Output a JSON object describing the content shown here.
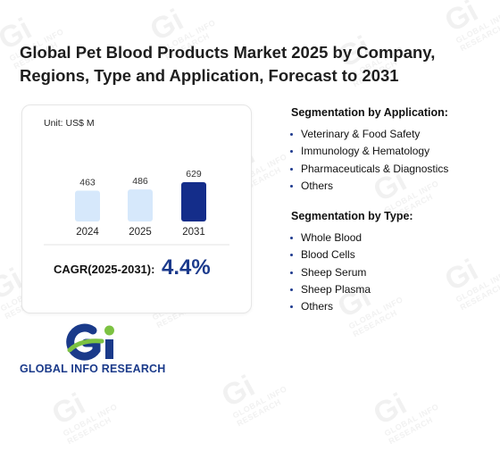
{
  "title": "Global Pet Blood Products Market 2025 by Company, Regions, Type and Application, Forecast to 2031",
  "chart_data": {
    "type": "bar",
    "unit": "Unit: US$ M",
    "categories": [
      "2024",
      "2025",
      "2031"
    ],
    "values": [
      463,
      486,
      629
    ],
    "data_labels": [
      "463",
      "486",
      "629"
    ],
    "colors": [
      "#d6e8fb",
      "#d6e8fb",
      "#142d8a"
    ]
  },
  "cagr": {
    "label": "CAGR(2025-2031):",
    "value": "4.4%"
  },
  "segmentation_application": {
    "title": "Segmentation by Application:",
    "items": [
      "Veterinary & Food Safety",
      "Immunology & Hematology",
      "Pharmaceuticals & Diagnostics",
      "Others"
    ]
  },
  "segmentation_type": {
    "title": "Segmentation by Type:",
    "items": [
      "Whole Blood",
      "Blood Cells",
      "Sheep Serum",
      "Sheep Plasma",
      "Others"
    ]
  },
  "logo": {
    "text": "GLOBAL INFO RESEARCH",
    "colors": {
      "blue": "#1a3a8a",
      "green": "#7cc242"
    }
  },
  "watermark": {
    "text": "GLOBAL INFO RESEARCH",
    "mark": "Gi"
  }
}
